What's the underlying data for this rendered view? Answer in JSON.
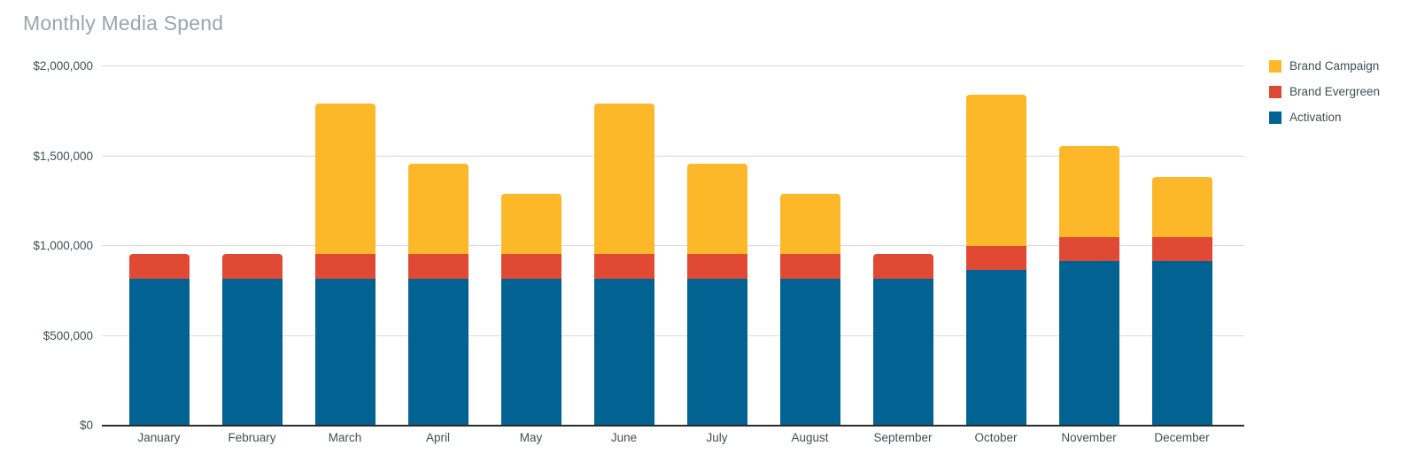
{
  "page": {
    "background_color": "#ffffff"
  },
  "chart_data": {
    "type": "bar",
    "stacked": true,
    "title": "Monthly Media Spend",
    "title_color": "#9aa5ad",
    "categories": [
      "January",
      "February",
      "March",
      "April",
      "May",
      "June",
      "July",
      "August",
      "September",
      "October",
      "November",
      "December"
    ],
    "series": [
      {
        "name": "Brand Campaign",
        "color": "#fcb828",
        "values": [
          0,
          0,
          840000,
          505000,
          335000,
          840000,
          505000,
          335000,
          0,
          840000,
          505000,
          335000
        ]
      },
      {
        "name": "Brand Evergreen",
        "color": "#e04a35",
        "values": [
          135000,
          135000,
          135000,
          135000,
          135000,
          135000,
          135000,
          135000,
          135000,
          135000,
          135000,
          135000
        ]
      },
      {
        "name": "Activation",
        "color": "#026393",
        "values": [
          815000,
          815000,
          815000,
          815000,
          815000,
          815000,
          815000,
          815000,
          815000,
          860000,
          910000,
          910000
        ]
      }
    ],
    "totals": [
      950000,
      950000,
      1790000,
      1455000,
      1285000,
      1790000,
      1455000,
      1285000,
      950000,
      1835000,
      1550000,
      1380000
    ],
    "ylim": [
      0,
      2000000
    ],
    "ytick_interval": 500000,
    "ytick_labels": [
      "$0",
      "$500,000",
      "$1,000,000",
      "$1,500,000",
      "$2,000,000"
    ],
    "grid": true,
    "gridline_color": "#d9d9d9",
    "axis_line_color": "#2b2b2b",
    "label_color": "#414f58",
    "legend_position": "right",
    "legend_order": [
      "Brand Campaign",
      "Brand Evergreen",
      "Activation"
    ]
  }
}
